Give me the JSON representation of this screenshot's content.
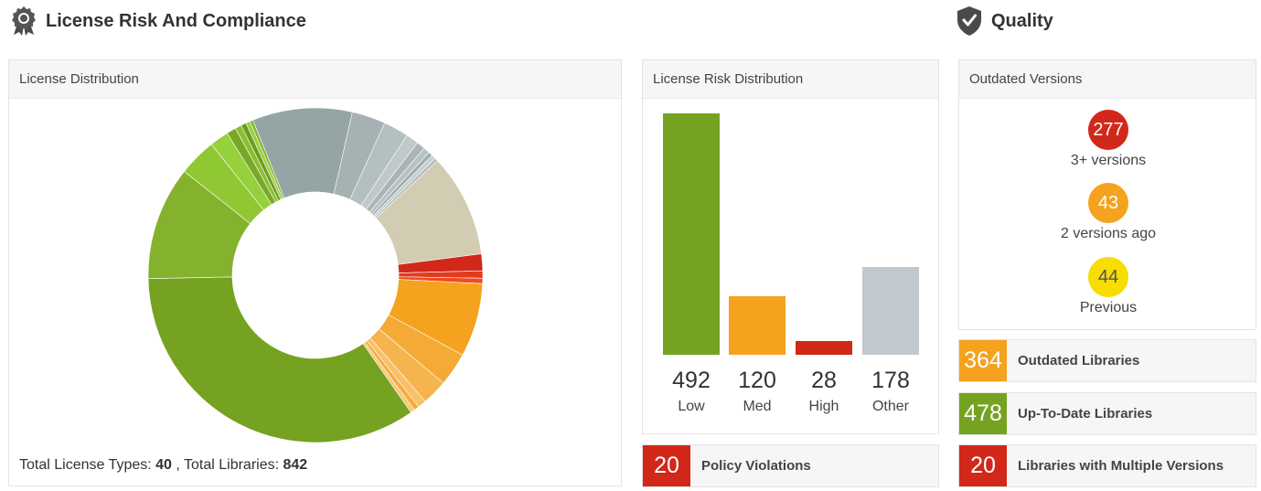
{
  "license_section": {
    "title": "License Risk And Compliance",
    "icon": "award-ribbon-icon"
  },
  "quality_section": {
    "title": "Quality",
    "icon": "shield-check-icon"
  },
  "license_distribution": {
    "header": "License Distribution",
    "totals_types_label": "Total License Types:",
    "totals_types_value": "40",
    "totals_separator": ", Total Libraries:",
    "totals_libraries_value": "842"
  },
  "chart_data": [
    {
      "type": "pie",
      "title": "License Distribution",
      "slices": [
        {
          "value": 9.5,
          "color": "#95a5a6"
        },
        {
          "value": 3.2,
          "color": "#a5b1b2"
        },
        {
          "value": 2.4,
          "color": "#b4bfc0"
        },
        {
          "value": 1.2,
          "color": "#c0c9ca"
        },
        {
          "value": 0.8,
          "color": "#aab4b5"
        },
        {
          "value": 0.6,
          "color": "#b9c2c3"
        },
        {
          "value": 0.4,
          "color": "#a2adae"
        },
        {
          "value": 0.4,
          "color": "#c6cecf"
        },
        {
          "value": 0.3,
          "color": "#b0babb"
        },
        {
          "value": 9.8,
          "color": "#d1ccb2"
        },
        {
          "value": 1.6,
          "color": "#d1281a"
        },
        {
          "value": 0.7,
          "color": "#e23a1c"
        },
        {
          "value": 0.5,
          "color": "#ef4a22"
        },
        {
          "value": 7.0,
          "color": "#f5a21e"
        },
        {
          "value": 3.2,
          "color": "#f5aa36"
        },
        {
          "value": 2.4,
          "color": "#f6b44f"
        },
        {
          "value": 0.8,
          "color": "#f8c068"
        },
        {
          "value": 0.5,
          "color": "#f5ad3f"
        },
        {
          "value": 0.4,
          "color": "#f9c77a"
        },
        {
          "value": 33.8,
          "color": "#76a221"
        },
        {
          "value": 10.8,
          "color": "#85b22c"
        },
        {
          "value": 3.6,
          "color": "#8fc832"
        },
        {
          "value": 1.8,
          "color": "#96d03a"
        },
        {
          "value": 0.9,
          "color": "#7aa728"
        },
        {
          "value": 0.6,
          "color": "#8cbf30"
        },
        {
          "value": 0.5,
          "color": "#6d9a22"
        },
        {
          "value": 0.4,
          "color": "#9bd043"
        },
        {
          "value": 0.3,
          "color": "#82b52b"
        }
      ]
    },
    {
      "type": "bar",
      "title": "License Risk Distribution",
      "categories": [
        "Low",
        "Med",
        "High",
        "Other"
      ],
      "values": [
        492,
        120,
        28,
        178
      ],
      "colors": [
        "#76a221",
        "#f5a21e",
        "#d1281a",
        "#c1c9cf"
      ],
      "ylim": [
        0,
        492
      ]
    }
  ],
  "risk_distribution": {
    "header": "License Risk Distribution",
    "items": [
      {
        "value": "492",
        "label": "Low"
      },
      {
        "value": "120",
        "label": "Med"
      },
      {
        "value": "28",
        "label": "High"
      },
      {
        "value": "178",
        "label": "Other"
      }
    ]
  },
  "policy": {
    "count": "20",
    "label": "Policy Violations",
    "color": "#d1281a"
  },
  "outdated_versions": {
    "header": "Outdated Versions",
    "items": [
      {
        "count": "277",
        "label": "3+ versions",
        "bg": "#d1281a",
        "fg": "#ffffff"
      },
      {
        "count": "43",
        "label": "2 versions ago",
        "bg": "#f5a21e",
        "fg": "#ffffff"
      },
      {
        "count": "44",
        "label": "Previous",
        "bg": "#f7dd00",
        "fg": "#555555"
      }
    ]
  },
  "library_stats": [
    {
      "count": "364",
      "label": "Outdated Libraries",
      "color": "#f5a21e"
    },
    {
      "count": "478",
      "label": "Up-To-Date Libraries",
      "color": "#76a221"
    },
    {
      "count": "20",
      "label": "Libraries with Multiple Versions",
      "color": "#d1281a"
    }
  ]
}
